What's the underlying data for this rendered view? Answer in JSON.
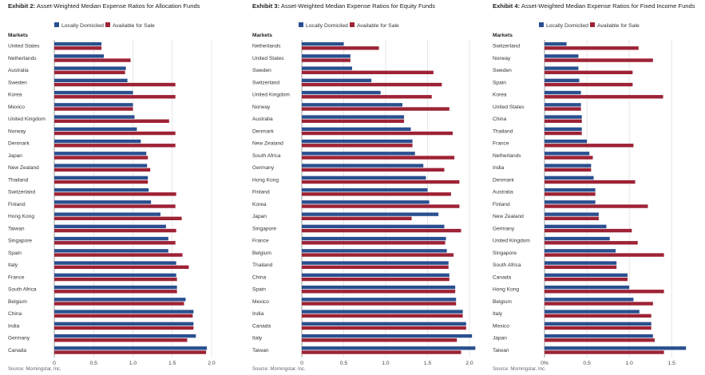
{
  "colors": {
    "local": "#2a4f8f",
    "available": "#9e2235",
    "grid": "#cfcfcf",
    "axis": "#888888"
  },
  "legend": {
    "local": "Locally Domiciled",
    "available": "Available for Sale"
  },
  "markets_header": "Markets",
  "chart_data": [
    {
      "type": "bar",
      "exhibit": "Exhibit 2:",
      "title": "Asset-Weighted Median Expense Ratios for Allocation Funds",
      "categories": [
        "United States",
        "Netherlands",
        "Australia",
        "Sweden",
        "Korea",
        "Mexico",
        "United Kingdom",
        "Norway",
        "Denmark",
        "Japan",
        "New Zealand",
        "Thailand",
        "Switzerland",
        "Finland",
        "Hong Kong",
        "Taiwan",
        "Singapore",
        "Spain",
        "Italy",
        "France",
        "South Africa",
        "Belgium",
        "China",
        "India",
        "Germany",
        "Canada"
      ],
      "series": [
        {
          "name": "Locally Domiciled",
          "values": [
            0.6,
            0.63,
            0.91,
            0.93,
            1.0,
            1.0,
            1.02,
            1.05,
            1.1,
            1.17,
            1.18,
            1.19,
            1.2,
            1.23,
            1.35,
            1.42,
            1.45,
            1.45,
            1.55,
            1.55,
            1.56,
            1.67,
            1.77,
            1.77,
            1.8,
            1.94
          ]
        },
        {
          "name": "Available for Sale",
          "values": [
            0.6,
            0.97,
            0.9,
            1.54,
            1.54,
            1.0,
            1.46,
            1.54,
            1.54,
            1.19,
            1.22,
            1.19,
            1.55,
            1.54,
            1.62,
            1.55,
            1.54,
            1.63,
            1.71,
            1.56,
            1.56,
            1.65,
            1.76,
            1.77,
            1.69,
            1.93
          ]
        }
      ],
      "xlim": [
        0,
        2.0
      ],
      "xticks": [
        "0",
        "0.5",
        "1.0",
        "1.5",
        "2.0"
      ],
      "source": "Source: Morningstar, Inc."
    },
    {
      "type": "bar",
      "exhibit": "Exhibit 3:",
      "title": "Asset-Weighted Median Expense Ratios for Equity Funds",
      "categories": [
        "Netherlands",
        "United States",
        "Sweden",
        "Switzerland",
        "United Kingdom",
        "Norway",
        "Australia",
        "Denmark",
        "New Zealand",
        "South Africa",
        "Germany",
        "Hong Kong",
        "Finland",
        "Korea",
        "Japan",
        "Singapore",
        "France",
        "Belgium",
        "Thailand",
        "China",
        "Spain",
        "Mexico",
        "India",
        "Canada",
        "Italy",
        "Taiwan"
      ],
      "series": [
        {
          "name": "Locally Domiciled",
          "values": [
            0.5,
            0.58,
            0.6,
            0.83,
            0.94,
            1.2,
            1.22,
            1.3,
            1.32,
            1.35,
            1.45,
            1.48,
            1.5,
            1.52,
            1.63,
            1.7,
            1.72,
            1.73,
            1.75,
            1.76,
            1.83,
            1.84,
            1.92,
            1.96,
            2.03,
            2.07
          ]
        },
        {
          "name": "Available for Sale",
          "values": [
            0.92,
            0.58,
            1.57,
            1.67,
            1.55,
            1.76,
            1.22,
            1.8,
            1.32,
            1.82,
            1.7,
            1.88,
            1.78,
            1.88,
            1.31,
            1.9,
            1.71,
            1.81,
            1.75,
            1.76,
            1.83,
            1.84,
            1.92,
            1.96,
            1.85,
            1.9
          ]
        }
      ],
      "xlim": [
        0,
        2.0
      ],
      "xticks": [
        "0",
        "0.5",
        "1.0",
        "1.5",
        "2.0"
      ],
      "source": "Source: Morningstar, Inc."
    },
    {
      "type": "bar",
      "exhibit": "Exhibit 4:",
      "title": "Asset-Weighted Median Expense Ratios for Fixed Income Funds",
      "categories": [
        "Switzerland",
        "Norway",
        "Sweden",
        "Spain",
        "Korea",
        "United States",
        "China",
        "Thailand",
        "France",
        "Netherlands",
        "India",
        "Denmark",
        "Australia",
        "Finland",
        "New Zealand",
        "Germany",
        "United Kingdom",
        "Singapore",
        "South Africa",
        "Canada",
        "Hong Kong",
        "Belgium",
        "Italy",
        "Mexico",
        "Japan",
        "Taiwan"
      ],
      "series": [
        {
          "name": "Locally Domiciled",
          "values": [
            0.26,
            0.4,
            0.4,
            0.41,
            0.43,
            0.43,
            0.44,
            0.44,
            0.5,
            0.53,
            0.55,
            0.58,
            0.6,
            0.6,
            0.64,
            0.73,
            0.77,
            0.84,
            0.85,
            0.98,
            1.0,
            1.05,
            1.12,
            1.26,
            1.28,
            1.67
          ]
        },
        {
          "name": "Available for Sale",
          "values": [
            1.11,
            1.28,
            1.04,
            1.04,
            1.4,
            0.43,
            0.44,
            0.44,
            1.05,
            0.57,
            0.55,
            1.07,
            0.6,
            1.22,
            0.64,
            1.03,
            1.1,
            1.41,
            0.85,
            0.98,
            1.41,
            1.28,
            1.26,
            1.26,
            1.3,
            1.41
          ]
        }
      ],
      "xlim": [
        0,
        1.8
      ],
      "xticks": [
        "0%",
        "0.5",
        "1.0",
        "1.5"
      ],
      "source": "Source: Morningstar, Inc."
    }
  ]
}
